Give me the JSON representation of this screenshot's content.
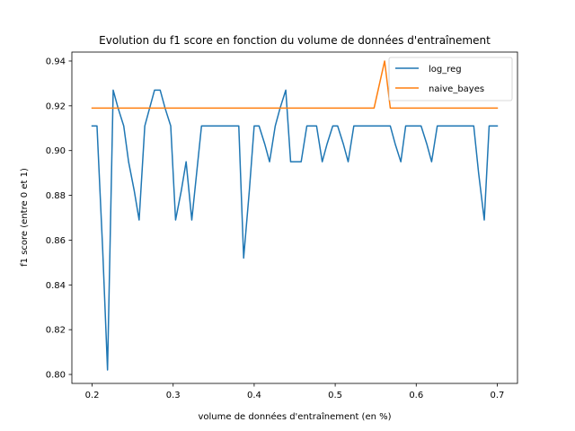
{
  "chart_data": {
    "type": "line",
    "title": "Evolution du f1 score en fonction du volume de données d'entraînement",
    "xlabel": "volume de données d'entraînement (en %)",
    "ylabel": "f1 score (entre 0 et 1)",
    "xlim": [
      0.175,
      0.725
    ],
    "ylim": [
      0.796,
      0.944
    ],
    "xticks": [
      0.2,
      0.3,
      0.4,
      0.5,
      0.6,
      0.7
    ],
    "xtick_labels": [
      "0.2",
      "0.3",
      "0.4",
      "0.5",
      "0.6",
      "0.7"
    ],
    "yticks": [
      0.8,
      0.82,
      0.84,
      0.86,
      0.88,
      0.9,
      0.92,
      0.94
    ],
    "ytick_labels": [
      "0.80",
      "0.82",
      "0.84",
      "0.86",
      "0.88",
      "0.90",
      "0.92",
      "0.94"
    ],
    "grid": false,
    "legend_position": "top-right",
    "series": [
      {
        "name": "log_reg",
        "color": "#1f77b4",
        "x": [
          0.2,
          0.206,
          0.213,
          0.219,
          0.226,
          0.232,
          0.239,
          0.245,
          0.252,
          0.258,
          0.265,
          0.271,
          0.277,
          0.284,
          0.29,
          0.297,
          0.303,
          0.31,
          0.316,
          0.323,
          0.329,
          0.335,
          0.342,
          0.348,
          0.355,
          0.361,
          0.368,
          0.374,
          0.381,
          0.387,
          0.394,
          0.4,
          0.406,
          0.413,
          0.419,
          0.426,
          0.432,
          0.439,
          0.445,
          0.452,
          0.458,
          0.465,
          0.471,
          0.477,
          0.484,
          0.49,
          0.497,
          0.503,
          0.51,
          0.516,
          0.523,
          0.529,
          0.535,
          0.542,
          0.548,
          0.555,
          0.561,
          0.568,
          0.574,
          0.581,
          0.587,
          0.594,
          0.6,
          0.606,
          0.613,
          0.619,
          0.626,
          0.632,
          0.639,
          0.645,
          0.652,
          0.658,
          0.665,
          0.671,
          0.677,
          0.684,
          0.69,
          0.697,
          0.7
        ],
        "values": [
          0.911,
          0.911,
          0.856,
          0.802,
          0.927,
          0.919,
          0.911,
          0.895,
          0.882,
          0.869,
          0.911,
          0.919,
          0.927,
          0.927,
          0.919,
          0.911,
          0.869,
          0.882,
          0.895,
          0.869,
          0.89,
          0.911,
          0.911,
          0.911,
          0.911,
          0.911,
          0.911,
          0.911,
          0.911,
          0.852,
          0.882,
          0.911,
          0.911,
          0.903,
          0.895,
          0.911,
          0.919,
          0.927,
          0.895,
          0.895,
          0.895,
          0.911,
          0.911,
          0.911,
          0.895,
          0.903,
          0.911,
          0.911,
          0.903,
          0.895,
          0.911,
          0.911,
          0.911,
          0.911,
          0.911,
          0.911,
          0.911,
          0.911,
          0.903,
          0.895,
          0.911,
          0.911,
          0.911,
          0.911,
          0.903,
          0.895,
          0.911,
          0.911,
          0.911,
          0.911,
          0.911,
          0.911,
          0.911,
          0.911,
          0.89,
          0.869,
          0.911,
          0.911,
          0.911
        ]
      },
      {
        "name": "naive_bayes",
        "color": "#ff7f0e",
        "x": [
          0.2,
          0.548,
          0.561,
          0.568,
          0.7
        ],
        "values": [
          0.919,
          0.919,
          0.94,
          0.919,
          0.919
        ]
      }
    ]
  }
}
